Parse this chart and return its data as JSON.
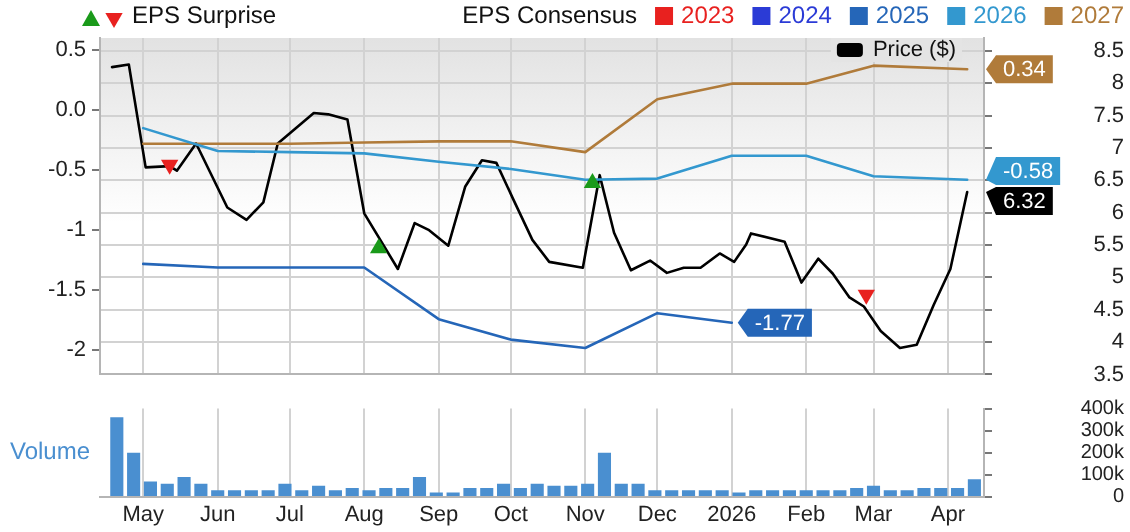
{
  "chart_data": [
    {
      "type": "line",
      "legend": "top",
      "legend_title": "EPS Consensus",
      "grid": true,
      "marker": "none",
      "tick_labels": "y",
      "xlim": [
        "2025-04-13",
        "2026-04-16"
      ],
      "xticks": [
        {
          "value": "2025-05-01",
          "label": null
        },
        {
          "value": "2025-06-01",
          "label": null
        },
        {
          "value": "2025-07-01",
          "label": null
        },
        {
          "value": "2025-08-01",
          "label": null
        },
        {
          "value": "2025-09-01",
          "label": null
        },
        {
          "value": "2025-10-01",
          "label": null
        },
        {
          "value": "2025-11-01",
          "label": null
        },
        {
          "value": "2025-12-01",
          "label": null
        },
        {
          "value": "2026-01-01",
          "label": null
        },
        {
          "value": "2026-02-01",
          "label": null
        },
        {
          "value": "2026-03-01",
          "label": null
        },
        {
          "value": "2026-04-01",
          "label": null
        }
      ],
      "ylim": [
        -2.2,
        0.6
      ],
      "yticks": [
        0.5,
        {
          "value": 0,
          "label": "0.0"
        },
        -0.5,
        -1,
        -1.5,
        -2
      ],
      "y2lim": [
        3.5,
        8.7
      ],
      "y2ticks": [
        3.5,
        4,
        4.5,
        5,
        5.5,
        6,
        6.5,
        7,
        7.5,
        8,
        8.5
      ],
      "series": [
        {
          "name": "2023",
          "color": "#e8211f"
        },
        {
          "name": "2024",
          "color": "#2b3bd6"
        },
        {
          "name": "2025",
          "color": "#2566b8",
          "x": [
            "2025-05-01",
            "2025-06-01",
            "2025-07-01",
            "2025-08-01",
            "2025-09-01",
            "2025-10-01",
            "2025-11-01",
            "2025-12-01",
            "2026-01-01"
          ],
          "values": [
            -1.28,
            -1.31,
            -1.31,
            -1.31,
            -1.74,
            -1.91,
            -1.98,
            -1.69,
            -1.77
          ],
          "value_labels": [
            null,
            null,
            null,
            null,
            null,
            null,
            null,
            null,
            "-1.77"
          ]
        },
        {
          "name": "2026",
          "color": "#3398cf",
          "x": [
            "2025-05-01",
            "2025-06-01",
            "2025-07-01",
            "2025-08-01",
            "2025-09-01",
            "2025-10-01",
            "2025-11-01",
            "2025-12-01",
            "2026-01-01",
            "2026-02-01",
            "2026-03-01",
            "2026-04-09"
          ],
          "values": [
            -0.15,
            -0.34,
            -0.35,
            -0.36,
            -0.43,
            -0.49,
            -0.58,
            -0.57,
            -0.38,
            -0.38,
            -0.55,
            -0.58
          ],
          "value_labels": [
            null,
            null,
            null,
            null,
            null,
            null,
            null,
            null,
            null,
            null,
            null,
            "-0.58"
          ]
        },
        {
          "name": "2027",
          "color": "#b07b3a",
          "x": [
            "2025-05-01",
            "2025-06-01",
            "2025-07-01",
            "2025-08-01",
            "2025-09-01",
            "2025-10-01",
            "2025-11-01",
            "2025-12-01",
            "2026-01-01",
            "2026-02-01",
            "2026-03-01",
            "2026-04-09"
          ],
          "values": [
            -0.28,
            -0.28,
            -0.28,
            -0.27,
            -0.26,
            -0.26,
            -0.35,
            0.09,
            0.22,
            0.22,
            0.37,
            0.34
          ],
          "value_labels": [
            null,
            null,
            null,
            null,
            null,
            null,
            null,
            null,
            null,
            null,
            null,
            "0.34"
          ]
        },
        {
          "name": "Price ($)",
          "color": "#000000",
          "axis": "y2",
          "x": [
            "2025-04-18",
            "2025-04-25",
            "2025-05-02",
            "2025-05-12",
            "2025-05-15",
            "2025-05-23",
            "2025-06-05",
            "2025-06-13",
            "2025-06-20",
            "2025-06-26",
            "2025-07-11",
            "2025-07-17",
            "2025-07-25",
            "2025-08-01",
            "2025-08-15",
            "2025-08-22",
            "2025-08-28",
            "2025-09-05",
            "2025-09-12",
            "2025-09-19",
            "2025-09-25",
            "2025-10-02",
            "2025-10-10",
            "2025-10-17",
            "2025-10-31",
            "2025-11-07",
            "2025-11-13",
            "2025-11-20",
            "2025-11-28",
            "2025-12-05",
            "2025-12-12",
            "2025-12-19",
            "2025-12-27",
            "2026-01-02",
            "2026-01-07",
            "2026-01-09",
            "2026-01-23",
            "2026-01-30",
            "2026-02-06",
            "2026-02-12",
            "2026-02-19",
            "2026-02-25",
            "2026-03-04",
            "2026-03-12",
            "2026-03-19",
            "2026-03-26",
            "2026-04-02",
            "2026-04-09"
          ],
          "values": [
            8.25,
            8.29,
            6.7,
            6.72,
            6.65,
            7.07,
            6.08,
            5.89,
            6.16,
            7.07,
            7.54,
            7.52,
            7.44,
            5.99,
            5.13,
            5.84,
            5.73,
            5.49,
            6.4,
            6.81,
            6.77,
            6.21,
            5.58,
            5.24,
            5.15,
            6.58,
            5.69,
            5.11,
            5.26,
            5.07,
            5.15,
            5.15,
            5.37,
            5.24,
            5.51,
            5.68,
            5.55,
            4.92,
            5.29,
            5.06,
            4.69,
            4.55,
            4.17,
            3.91,
            3.96,
            4.57,
            5.13,
            6.32
          ],
          "value_labels": [
            null,
            null,
            null,
            null,
            null,
            null,
            null,
            null,
            null,
            null,
            null,
            null,
            null,
            null,
            null,
            null,
            null,
            null,
            null,
            null,
            null,
            null,
            null,
            null,
            null,
            null,
            null,
            null,
            null,
            null,
            null,
            null,
            null,
            null,
            null,
            null,
            null,
            null,
            null,
            null,
            null,
            null,
            null,
            null,
            null,
            null,
            null,
            "6.32"
          ]
        },
        {
          "type": "scatter",
          "name": "EPS Surprise",
          "axis": "y2",
          "marker": "triangle",
          "colors": [
            "#e8211f",
            "#1a9a1a",
            "#1a9a1a",
            "#e8211f"
          ],
          "x": [
            "2025-05-12",
            "2025-08-07",
            "2025-11-04",
            "2026-02-26"
          ],
          "values": [
            6.74,
            5.45,
            6.46,
            4.73
          ]
        }
      ]
    },
    {
      "type": "bar",
      "title": "Volume",
      "color": "#4a8fd0",
      "grid": "x",
      "xlim": [
        "2025-04-13",
        "2026-04-16"
      ],
      "xticks": [
        {
          "value": "2025-05-01",
          "label": "May"
        },
        {
          "value": "2025-06-01",
          "label": "Jun"
        },
        {
          "value": "2025-07-01",
          "label": "Jul"
        },
        {
          "value": "2025-08-01",
          "label": "Aug"
        },
        {
          "value": "2025-09-01",
          "label": "Sep"
        },
        {
          "value": "2025-10-01",
          "label": "Oct"
        },
        {
          "value": "2025-11-01",
          "label": "Nov"
        },
        {
          "value": "2025-12-01",
          "label": "Dec"
        },
        {
          "value": "2026-01-01",
          "label": "2026"
        },
        {
          "value": "2026-02-01",
          "label": "Feb"
        },
        {
          "value": "2026-03-01",
          "label": "Mar"
        },
        {
          "value": "2026-04-01",
          "label": "Apr"
        }
      ],
      "ylim": [
        0,
        400000
      ],
      "yticks": [
        0,
        {
          "value": 100000,
          "label": "100k"
        },
        {
          "value": 200000,
          "label": "200k"
        },
        {
          "value": 300000,
          "label": "300k"
        },
        {
          "value": 400000,
          "label": "400k"
        }
      ],
      "x": [
        "2025-04-20",
        "2025-04-27",
        "2025-05-04",
        "2025-05-11",
        "2025-05-18",
        "2025-05-25",
        "2025-06-01",
        "2025-06-08",
        "2025-06-15",
        "2025-06-22",
        "2025-06-29",
        "2025-07-06",
        "2025-07-13",
        "2025-07-20",
        "2025-07-27",
        "2025-08-03",
        "2025-08-10",
        "2025-08-17",
        "2025-08-24",
        "2025-08-31",
        "2025-09-07",
        "2025-09-14",
        "2025-09-21",
        "2025-09-28",
        "2025-10-05",
        "2025-10-12",
        "2025-10-19",
        "2025-10-26",
        "2025-11-02",
        "2025-11-09",
        "2025-11-16",
        "2025-11-23",
        "2025-11-30",
        "2025-12-07",
        "2025-12-14",
        "2025-12-21",
        "2025-12-28",
        "2026-01-04",
        "2026-01-11",
        "2026-01-18",
        "2026-01-25",
        "2026-02-01",
        "2026-02-08",
        "2026-02-15",
        "2026-02-22",
        "2026-03-01",
        "2026-03-08",
        "2026-03-15",
        "2026-03-22",
        "2026-03-29",
        "2026-04-05",
        "2026-04-12"
      ],
      "values": [
        360000,
        200000,
        70000,
        60000,
        90000,
        60000,
        30000,
        30000,
        30000,
        30000,
        60000,
        30000,
        50000,
        30000,
        40000,
        30000,
        40000,
        40000,
        90000,
        20000,
        20000,
        40000,
        40000,
        60000,
        40000,
        60000,
        50000,
        50000,
        60000,
        200000,
        60000,
        60000,
        30000,
        30000,
        30000,
        30000,
        30000,
        20000,
        30000,
        30000,
        30000,
        30000,
        30000,
        30000,
        40000,
        50000,
        30000,
        30000,
        40000,
        40000,
        40000,
        80000
      ]
    }
  ]
}
